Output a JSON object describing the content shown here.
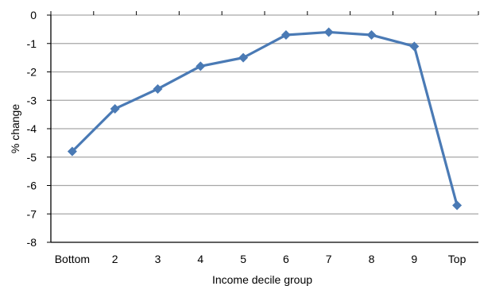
{
  "chart_data": {
    "type": "line",
    "xlabel": "Income decile group",
    "ylabel": "% change",
    "ylim": [
      -8,
      0
    ],
    "y_ticks": [
      "0",
      "-1",
      "-2",
      "-3",
      "-4",
      "-5",
      "-6",
      "-7",
      "-8"
    ],
    "categories": [
      "Bottom",
      "2",
      "3",
      "4",
      "5",
      "6",
      "7",
      "8",
      "9",
      "Top"
    ],
    "series": [
      {
        "values": [
          -4.8,
          -3.3,
          -2.6,
          -1.8,
          -1.5,
          -0.7,
          -0.6,
          -0.7,
          -1.1,
          -6.7
        ]
      }
    ],
    "grid": true,
    "legend": "none",
    "colors": {
      "line": "#4a7ab5",
      "grid": "#a6a6a6",
      "axis": "#000000"
    }
  }
}
